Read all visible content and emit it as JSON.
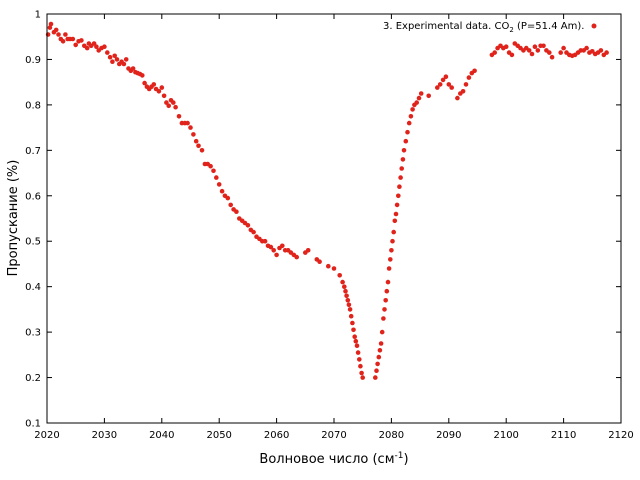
{
  "chart_data": {
    "type": "scatter",
    "xlabel_main": "Волновое число (см",
    "xlabel_sup": "-1",
    "xlabel_end": ")",
    "ylabel": "Пропускание (%)",
    "xlim": [
      2020,
      2120
    ],
    "ylim": [
      0.1,
      1.0
    ],
    "xticks": [
      "2020",
      "2030",
      "2040",
      "2050",
      "2060",
      "2070",
      "2080",
      "2090",
      "2100",
      "2110",
      "2120"
    ],
    "yticks": [
      "0.1",
      "0.2",
      "0.3",
      "0.4",
      "0.5",
      "0.6",
      "0.7",
      "0.8",
      "0.9",
      "1"
    ],
    "grid": false,
    "legend_position": "top-right",
    "legend": {
      "prefix": "3. Experimental data. CO",
      "sub": "2",
      "suffix": " (P=51.4 Am)."
    },
    "series": [
      {
        "color": "#e0231b",
        "points": [
          [
            2020.2,
            0.955
          ],
          [
            2020.5,
            0.97
          ],
          [
            2020.7,
            0.978
          ],
          [
            2021.2,
            0.96
          ],
          [
            2021.6,
            0.965
          ],
          [
            2022.0,
            0.955
          ],
          [
            2022.4,
            0.945
          ],
          [
            2022.8,
            0.94
          ],
          [
            2023.2,
            0.955
          ],
          [
            2023.6,
            0.945
          ],
          [
            2024.0,
            0.945
          ],
          [
            2024.5,
            0.945
          ],
          [
            2025.0,
            0.932
          ],
          [
            2025.5,
            0.94
          ],
          [
            2026.0,
            0.942
          ],
          [
            2026.5,
            0.93
          ],
          [
            2027.0,
            0.925
          ],
          [
            2027.3,
            0.935
          ],
          [
            2027.7,
            0.93
          ],
          [
            2028.2,
            0.935
          ],
          [
            2028.6,
            0.928
          ],
          [
            2029.0,
            0.92
          ],
          [
            2029.5,
            0.925
          ],
          [
            2030.0,
            0.928
          ],
          [
            2030.5,
            0.915
          ],
          [
            2031.0,
            0.905
          ],
          [
            2031.4,
            0.895
          ],
          [
            2031.8,
            0.908
          ],
          [
            2032.2,
            0.9
          ],
          [
            2032.6,
            0.89
          ],
          [
            2033.0,
            0.895
          ],
          [
            2033.4,
            0.89
          ],
          [
            2033.8,
            0.9
          ],
          [
            2034.2,
            0.88
          ],
          [
            2034.6,
            0.875
          ],
          [
            2035.0,
            0.88
          ],
          [
            2035.4,
            0.872
          ],
          [
            2035.8,
            0.87
          ],
          [
            2036.2,
            0.868
          ],
          [
            2036.6,
            0.865
          ],
          [
            2037.0,
            0.848
          ],
          [
            2037.4,
            0.84
          ],
          [
            2037.8,
            0.835
          ],
          [
            2038.2,
            0.84
          ],
          [
            2038.6,
            0.845
          ],
          [
            2039.0,
            0.835
          ],
          [
            2039.5,
            0.83
          ],
          [
            2040.0,
            0.838
          ],
          [
            2040.4,
            0.82
          ],
          [
            2040.8,
            0.805
          ],
          [
            2041.2,
            0.798
          ],
          [
            2041.6,
            0.81
          ],
          [
            2042.0,
            0.805
          ],
          [
            2042.4,
            0.795
          ],
          [
            2043.0,
            0.775
          ],
          [
            2043.5,
            0.76
          ],
          [
            2044.0,
            0.76
          ],
          [
            2044.5,
            0.76
          ],
          [
            2045.0,
            0.75
          ],
          [
            2045.5,
            0.735
          ],
          [
            2046.0,
            0.72
          ],
          [
            2046.4,
            0.71
          ],
          [
            2047.0,
            0.7
          ],
          [
            2047.5,
            0.67
          ],
          [
            2048.0,
            0.67
          ],
          [
            2048.5,
            0.665
          ],
          [
            2049.0,
            0.655
          ],
          [
            2049.5,
            0.64
          ],
          [
            2050.0,
            0.625
          ],
          [
            2050.5,
            0.61
          ],
          [
            2051.0,
            0.6
          ],
          [
            2051.5,
            0.595
          ],
          [
            2052.0,
            0.58
          ],
          [
            2052.5,
            0.57
          ],
          [
            2053.0,
            0.565
          ],
          [
            2053.5,
            0.55
          ],
          [
            2054.0,
            0.545
          ],
          [
            2054.5,
            0.54
          ],
          [
            2055.0,
            0.535
          ],
          [
            2055.5,
            0.525
          ],
          [
            2056.0,
            0.52
          ],
          [
            2056.5,
            0.51
          ],
          [
            2057.0,
            0.505
          ],
          [
            2057.5,
            0.5
          ],
          [
            2058.0,
            0.5
          ],
          [
            2058.5,
            0.49
          ],
          [
            2059.0,
            0.487
          ],
          [
            2059.5,
            0.48
          ],
          [
            2060.0,
            0.47
          ],
          [
            2060.5,
            0.485
          ],
          [
            2061.0,
            0.49
          ],
          [
            2061.5,
            0.48
          ],
          [
            2062.0,
            0.48
          ],
          [
            2062.5,
            0.475
          ],
          [
            2063.0,
            0.47
          ],
          [
            2063.5,
            0.465
          ],
          [
            2065.0,
            0.475
          ],
          [
            2065.5,
            0.48
          ],
          [
            2067.0,
            0.46
          ],
          [
            2067.5,
            0.455
          ],
          [
            2069.0,
            0.445
          ],
          [
            2070.0,
            0.44
          ],
          [
            2071.0,
            0.425
          ],
          [
            2071.5,
            0.41
          ],
          [
            2071.8,
            0.4
          ],
          [
            2072.0,
            0.39
          ],
          [
            2072.2,
            0.38
          ],
          [
            2072.4,
            0.37
          ],
          [
            2072.6,
            0.36
          ],
          [
            2072.8,
            0.35
          ],
          [
            2073.0,
            0.335
          ],
          [
            2073.2,
            0.32
          ],
          [
            2073.4,
            0.305
          ],
          [
            2073.6,
            0.29
          ],
          [
            2073.8,
            0.28
          ],
          [
            2074.0,
            0.27
          ],
          [
            2074.2,
            0.255
          ],
          [
            2074.4,
            0.24
          ],
          [
            2074.6,
            0.225
          ],
          [
            2074.8,
            0.21
          ],
          [
            2075.0,
            0.2
          ],
          [
            2077.2,
            0.2
          ],
          [
            2077.4,
            0.215
          ],
          [
            2077.6,
            0.23
          ],
          [
            2077.8,
            0.245
          ],
          [
            2078.0,
            0.26
          ],
          [
            2078.2,
            0.275
          ],
          [
            2078.4,
            0.3
          ],
          [
            2078.6,
            0.33
          ],
          [
            2078.8,
            0.35
          ],
          [
            2079.0,
            0.37
          ],
          [
            2079.2,
            0.39
          ],
          [
            2079.4,
            0.41
          ],
          [
            2079.6,
            0.44
          ],
          [
            2079.8,
            0.46
          ],
          [
            2080.0,
            0.48
          ],
          [
            2080.2,
            0.5
          ],
          [
            2080.4,
            0.52
          ],
          [
            2080.6,
            0.545
          ],
          [
            2080.8,
            0.56
          ],
          [
            2081.0,
            0.58
          ],
          [
            2081.2,
            0.6
          ],
          [
            2081.4,
            0.62
          ],
          [
            2081.6,
            0.64
          ],
          [
            2081.8,
            0.66
          ],
          [
            2082.0,
            0.68
          ],
          [
            2082.2,
            0.7
          ],
          [
            2082.5,
            0.72
          ],
          [
            2082.8,
            0.74
          ],
          [
            2083.1,
            0.76
          ],
          [
            2083.4,
            0.775
          ],
          [
            2083.7,
            0.79
          ],
          [
            2084.0,
            0.8
          ],
          [
            2084.4,
            0.805
          ],
          [
            2084.8,
            0.815
          ],
          [
            2085.2,
            0.825
          ],
          [
            2086.5,
            0.82
          ],
          [
            2088.0,
            0.838
          ],
          [
            2088.5,
            0.845
          ],
          [
            2089.0,
            0.855
          ],
          [
            2089.5,
            0.862
          ],
          [
            2090.0,
            0.845
          ],
          [
            2090.5,
            0.838
          ],
          [
            2091.5,
            0.815
          ],
          [
            2092.0,
            0.825
          ],
          [
            2092.5,
            0.83
          ],
          [
            2093.0,
            0.845
          ],
          [
            2093.5,
            0.86
          ],
          [
            2094.0,
            0.87
          ],
          [
            2094.5,
            0.875
          ],
          [
            2097.5,
            0.91
          ],
          [
            2098.0,
            0.915
          ],
          [
            2098.5,
            0.925
          ],
          [
            2099.0,
            0.93
          ],
          [
            2099.5,
            0.925
          ],
          [
            2100.0,
            0.928
          ],
          [
            2100.5,
            0.915
          ],
          [
            2101.0,
            0.91
          ],
          [
            2101.5,
            0.935
          ],
          [
            2102.0,
            0.93
          ],
          [
            2102.5,
            0.925
          ],
          [
            2103.0,
            0.92
          ],
          [
            2103.5,
            0.925
          ],
          [
            2104.0,
            0.92
          ],
          [
            2104.5,
            0.912
          ],
          [
            2105.0,
            0.928
          ],
          [
            2105.5,
            0.92
          ],
          [
            2106.0,
            0.93
          ],
          [
            2106.5,
            0.93
          ],
          [
            2107.0,
            0.92
          ],
          [
            2107.5,
            0.915
          ],
          [
            2108.0,
            0.905
          ],
          [
            2109.5,
            0.915
          ],
          [
            2110.0,
            0.925
          ],
          [
            2110.5,
            0.915
          ],
          [
            2111.0,
            0.91
          ],
          [
            2111.5,
            0.908
          ],
          [
            2112.0,
            0.91
          ],
          [
            2112.5,
            0.915
          ],
          [
            2113.0,
            0.92
          ],
          [
            2113.5,
            0.92
          ],
          [
            2114.0,
            0.925
          ],
          [
            2114.5,
            0.915
          ],
          [
            2115.0,
            0.918
          ],
          [
            2115.5,
            0.912
          ],
          [
            2116.0,
            0.915
          ],
          [
            2116.5,
            0.92
          ],
          [
            2117.0,
            0.91
          ],
          [
            2117.5,
            0.915
          ]
        ]
      }
    ]
  }
}
